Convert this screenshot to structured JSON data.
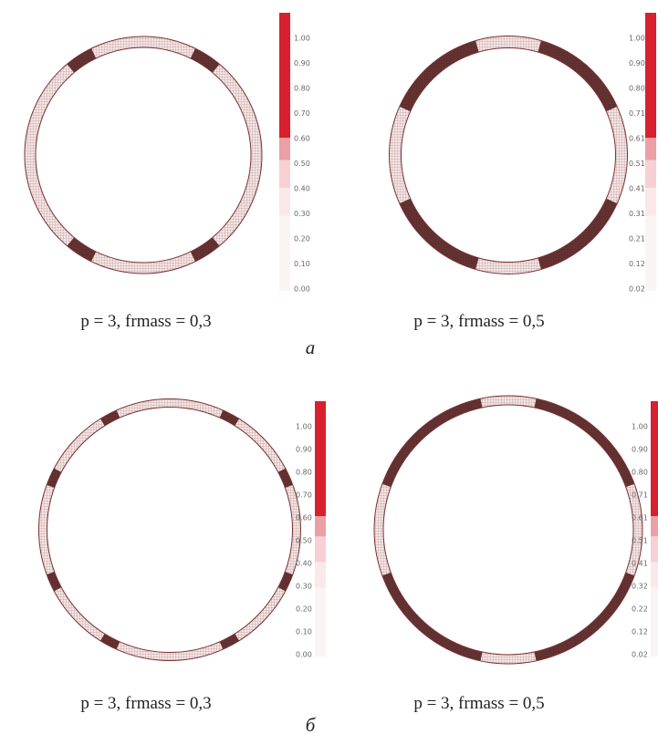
{
  "panels": [
    {
      "caption": "p = 3, frmass = 0,3",
      "scale": [
        "1.00",
        "0.90",
        "0.80",
        "0.70",
        "0.60",
        "0.50",
        "0.40",
        "0.30",
        "0.20",
        "0.10",
        "0.00"
      ]
    },
    {
      "caption": "p = 3, frmass = 0,5",
      "scale": [
        "1.00",
        "0.90",
        "0.80",
        "0.71",
        "0.61",
        "0.51",
        "0.41",
        "0.31",
        "0.21",
        "0.12",
        "0.02"
      ]
    },
    {
      "caption": "p = 3, frmass = 0,3",
      "scale": [
        "1.00",
        "0.90",
        "0.80",
        "0.70",
        "0.60",
        "0.50",
        "0.40",
        "0.30",
        "0.20",
        "0.10",
        "0.00"
      ]
    },
    {
      "caption": "p = 3, frmass = 0,5",
      "scale": [
        "1.00",
        "0.90",
        "0.80",
        "0.71",
        "0.61",
        "0.51",
        "0.41",
        "0.32",
        "0.22",
        "0.12",
        "0.02"
      ]
    }
  ],
  "subfigures": [
    "а",
    "б"
  ]
}
